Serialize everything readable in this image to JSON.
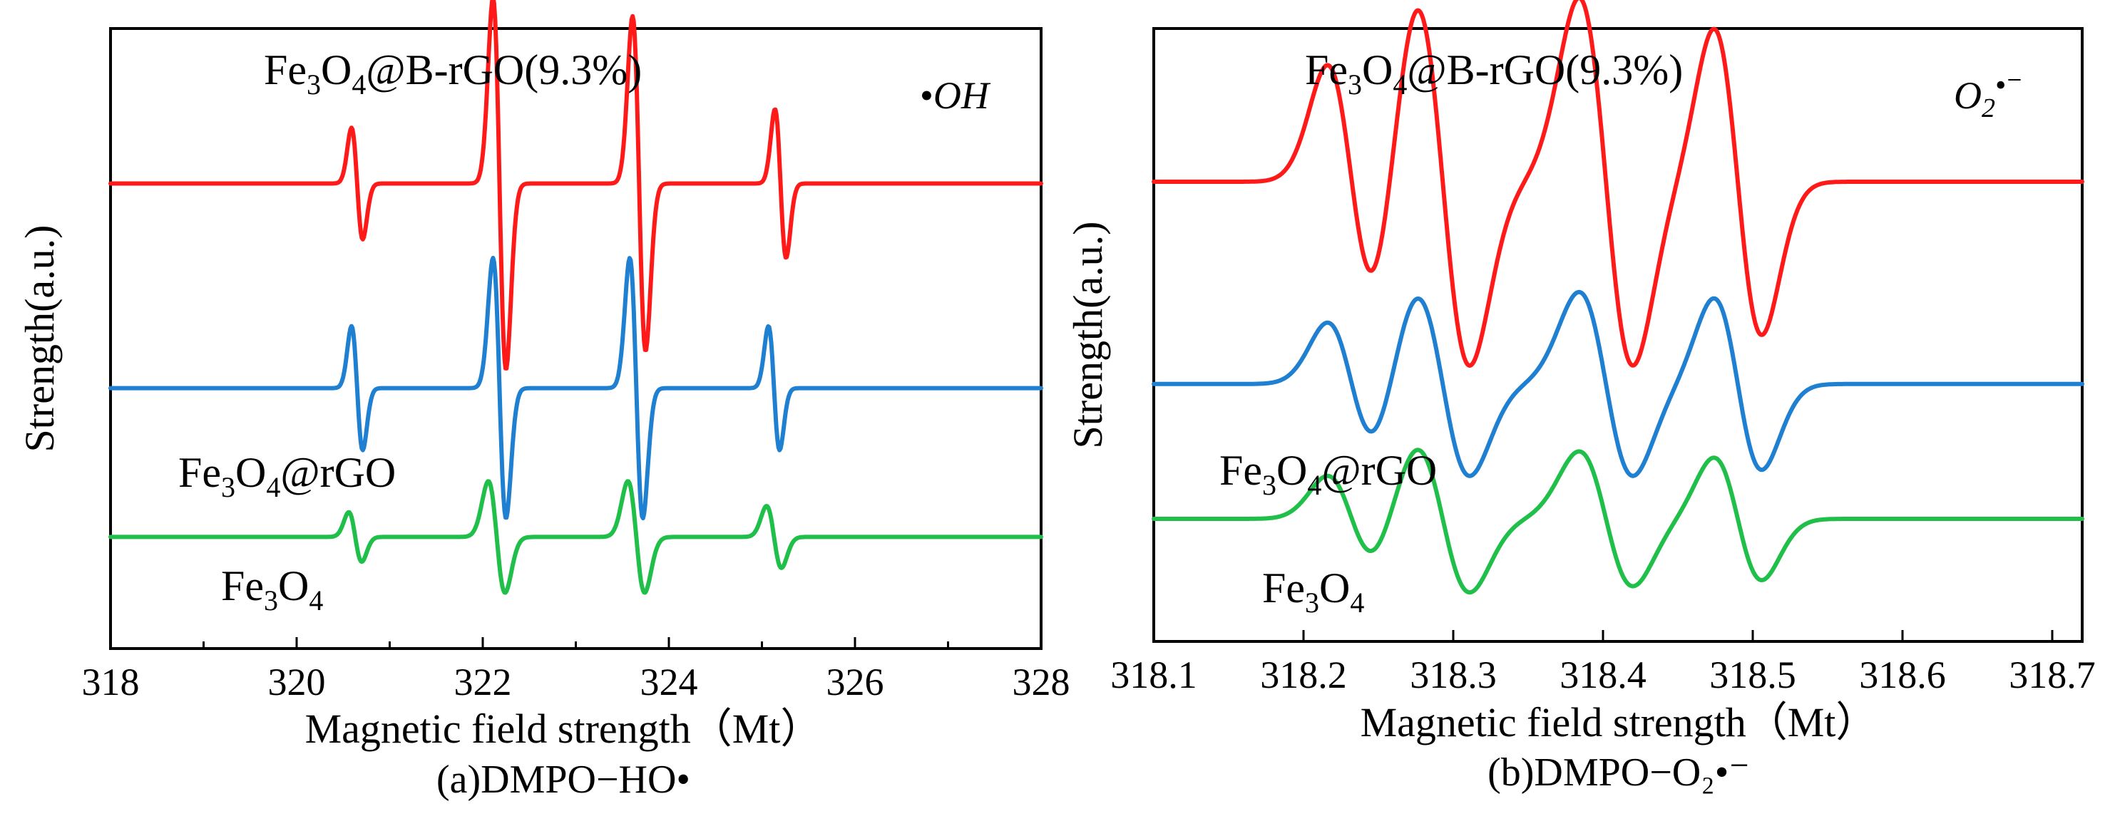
{
  "colors": {
    "red": "#ff1a1a",
    "blue": "#1f7fd1",
    "green": "#1fbf4a"
  },
  "chart_data": [
    {
      "type": "line",
      "panel": "a",
      "caption": "(a)DMPO−HO•",
      "xlabel": "Magnetic field strength（Mt）",
      "ylabel": "Strength(a.u.)",
      "xlim": [
        318,
        328
      ],
      "ylim": [
        0,
        1
      ],
      "xticks": [
        "318",
        "320",
        "322",
        "324",
        "326",
        "328"
      ],
      "xtick_values": [
        318,
        320,
        322,
        324,
        326,
        328
      ],
      "annotation": {
        "symbol": "•",
        "text": "OH"
      },
      "series": [
        {
          "name": "Fe3O4@B-rGO(9.3%)",
          "label_base": "Fe",
          "sub1": "3",
          "mid": "O",
          "sub2": "4",
          "suffix": "@B-rGO(9.3%)",
          "color": "red",
          "baseline": 0.75,
          "peaks": [
            {
              "x": 320.65,
              "amp": 0.09,
              "w": 0.06
            },
            {
              "x": 322.18,
              "amp": 0.3,
              "w": 0.07
            },
            {
              "x": 323.68,
              "amp": 0.27,
              "w": 0.07
            },
            {
              "x": 325.2,
              "amp": 0.12,
              "w": 0.06
            }
          ]
        },
        {
          "name": "Fe3O4@rGO",
          "label_base": "Fe",
          "sub1": "3",
          "mid": "O",
          "sub2": "4",
          "suffix": "@rGO",
          "color": "blue",
          "baseline": 0.42,
          "peaks": [
            {
              "x": 320.65,
              "amp": 0.1,
              "w": 0.06
            },
            {
              "x": 322.18,
              "amp": 0.21,
              "w": 0.07
            },
            {
              "x": 323.65,
              "amp": 0.21,
              "w": 0.07
            },
            {
              "x": 325.13,
              "amp": 0.1,
              "w": 0.06
            }
          ]
        },
        {
          "name": "Fe3O4",
          "label_base": "Fe",
          "sub1": "3",
          "mid": "O",
          "sub2": "4",
          "suffix": "",
          "color": "green",
          "baseline": 0.18,
          "peaks": [
            {
              "x": 320.63,
              "amp": 0.04,
              "w": 0.07
            },
            {
              "x": 322.15,
              "amp": 0.09,
              "w": 0.09
            },
            {
              "x": 323.65,
              "amp": 0.09,
              "w": 0.09
            },
            {
              "x": 325.13,
              "amp": 0.05,
              "w": 0.08
            }
          ]
        }
      ]
    },
    {
      "type": "line",
      "panel": "b",
      "caption": "(b)DMPO−O₂•⁻",
      "xlabel": "Magnetic field strength（Mt）",
      "ylabel": "Strength(a.u.)",
      "xlim": [
        318.1,
        318.72
      ],
      "ylim": [
        0,
        1
      ],
      "xticks": [
        "318.1",
        "318.2",
        "318.3",
        "318.4",
        "318.5",
        "318.6",
        "318.7"
      ],
      "xtick_values": [
        318.1,
        318.2,
        318.3,
        318.4,
        318.5,
        318.6,
        318.7
      ],
      "annotation": {
        "text": "O",
        "sub": "2",
        "sup": "•⁻"
      },
      "series": [
        {
          "name": "Fe3O4@B-rGO(9.3%)",
          "label_base": "Fe",
          "sub1": "3",
          "mid": "O",
          "sub2": "4",
          "suffix": "@B-rGO(9.3%)",
          "color": "red",
          "baseline": 0.75,
          "peaks": [
            {
              "x": 318.232,
              "amp": 0.19,
              "w": 0.016
            },
            {
              "x": 318.293,
              "amp": 0.3,
              "w": 0.018
            },
            {
              "x": 318.402,
              "amp": 0.3,
              "w": 0.018
            },
            {
              "x": 318.49,
              "amp": 0.25,
              "w": 0.016
            }
          ]
        },
        {
          "name": "Fe3O4@rGO",
          "label_base": "Fe",
          "sub1": "3",
          "mid": "O",
          "sub2": "4",
          "suffix": "@rGO",
          "color": "blue",
          "baseline": 0.42,
          "peaks": [
            {
              "x": 318.232,
              "amp": 0.1,
              "w": 0.016
            },
            {
              "x": 318.293,
              "amp": 0.15,
              "w": 0.018
            },
            {
              "x": 318.402,
              "amp": 0.15,
              "w": 0.018
            },
            {
              "x": 318.49,
              "amp": 0.14,
              "w": 0.016
            }
          ]
        },
        {
          "name": "Fe3O4",
          "label_base": "Fe",
          "sub1": "3",
          "mid": "O",
          "sub2": "4",
          "suffix": "",
          "color": "green",
          "baseline": 0.2,
          "peaks": [
            {
              "x": 318.232,
              "amp": 0.07,
              "w": 0.016
            },
            {
              "x": 318.293,
              "amp": 0.12,
              "w": 0.018
            },
            {
              "x": 318.402,
              "amp": 0.11,
              "w": 0.018
            },
            {
              "x": 318.49,
              "amp": 0.1,
              "w": 0.016
            }
          ]
        }
      ]
    }
  ]
}
